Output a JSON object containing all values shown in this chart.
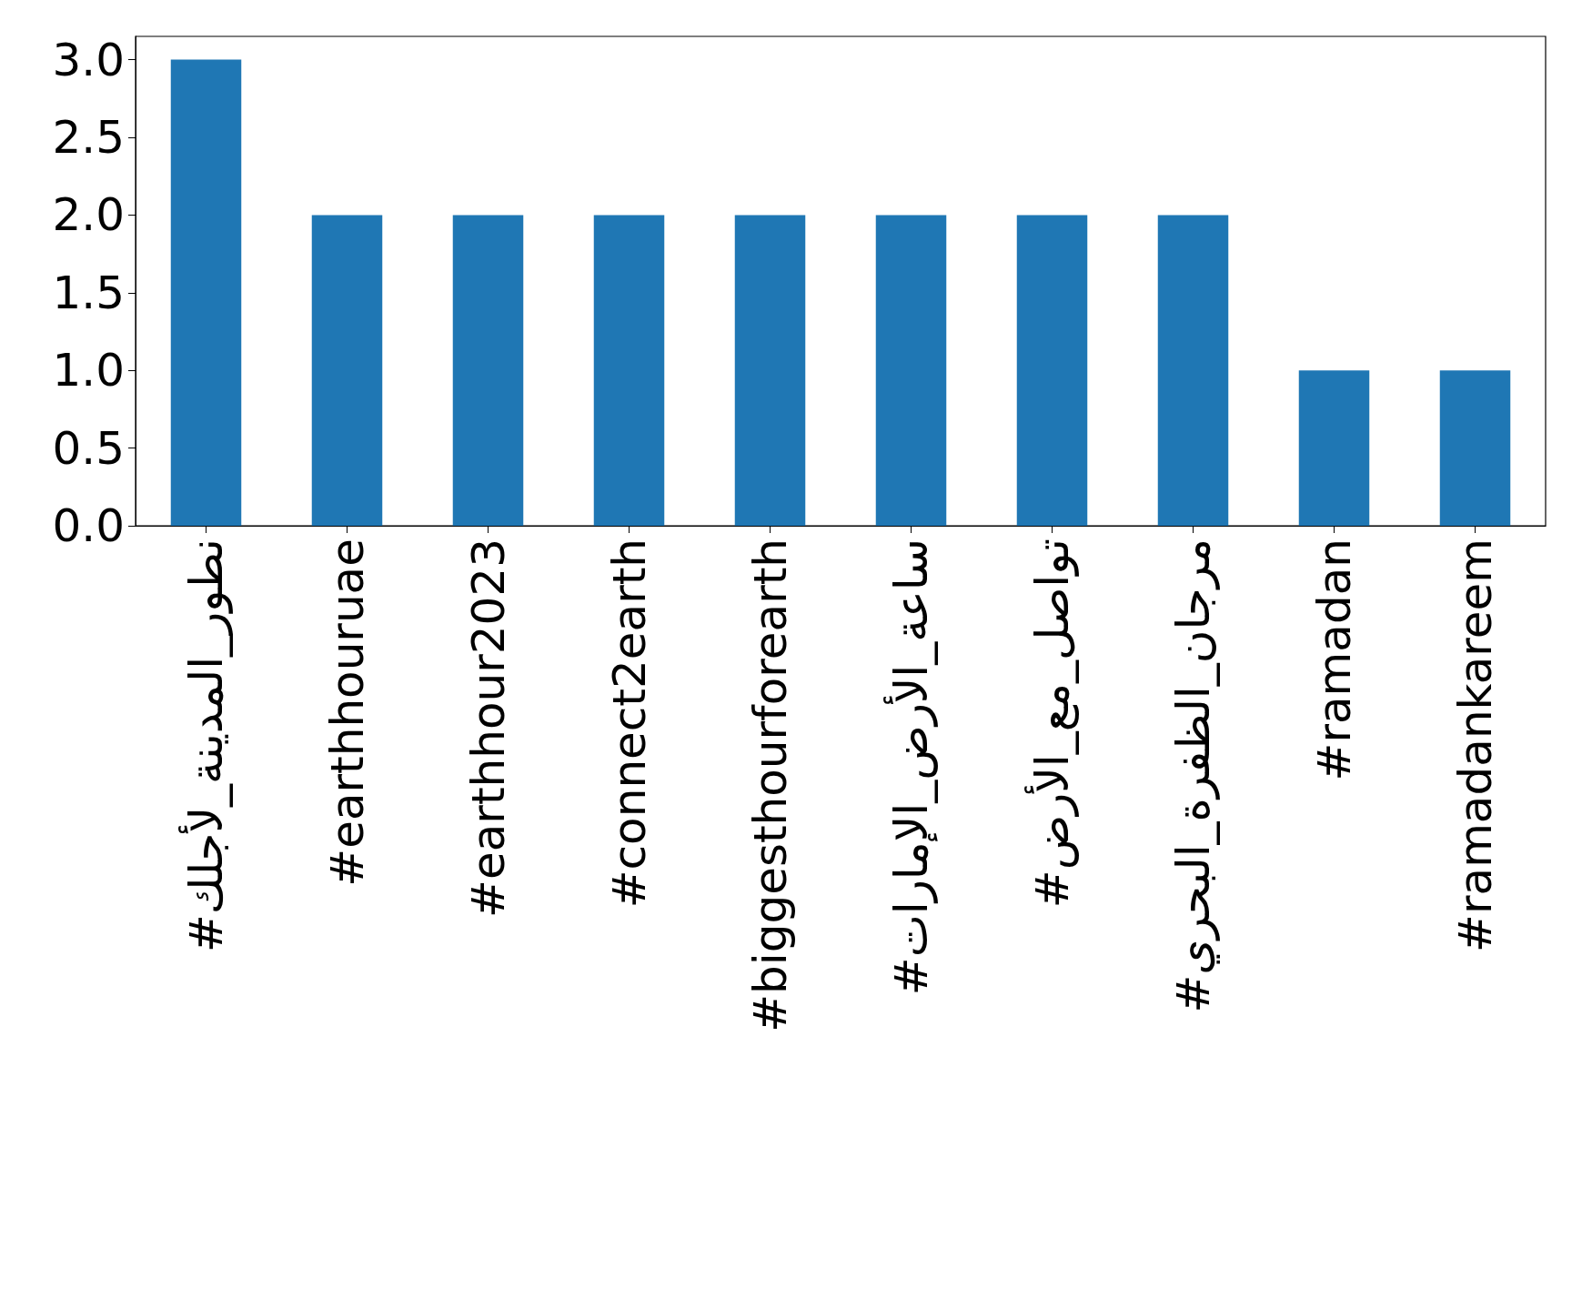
{
  "chart_data": {
    "type": "bar",
    "categories": [
      "#نطور_المدينة_لأجلك",
      "#earthhouruae",
      "#earthhour2023",
      "#connect2earth",
      "#biggesthourforearth",
      "#ساعة_الأرض_الإمارات",
      "#تواصل_مع_الأرض",
      "#مرجان_الظفرة_البحري",
      "#ramadan",
      "#ramadankareem"
    ],
    "values": [
      3,
      2,
      2,
      2,
      2,
      2,
      2,
      2,
      1,
      1
    ],
    "color": "#1f77b4",
    "ylim": [
      0,
      3.15
    ],
    "yticks": [
      {
        "value": 0,
        "label": "0.0"
      },
      {
        "value": 0.5,
        "label": "0.5"
      },
      {
        "value": 1,
        "label": "1.0"
      },
      {
        "value": 1.5,
        "label": "1.5"
      },
      {
        "value": 2,
        "label": "2.0"
      },
      {
        "value": 2.5,
        "label": "2.5"
      },
      {
        "value": 3,
        "label": "3.0"
      }
    ],
    "grid": false
  }
}
